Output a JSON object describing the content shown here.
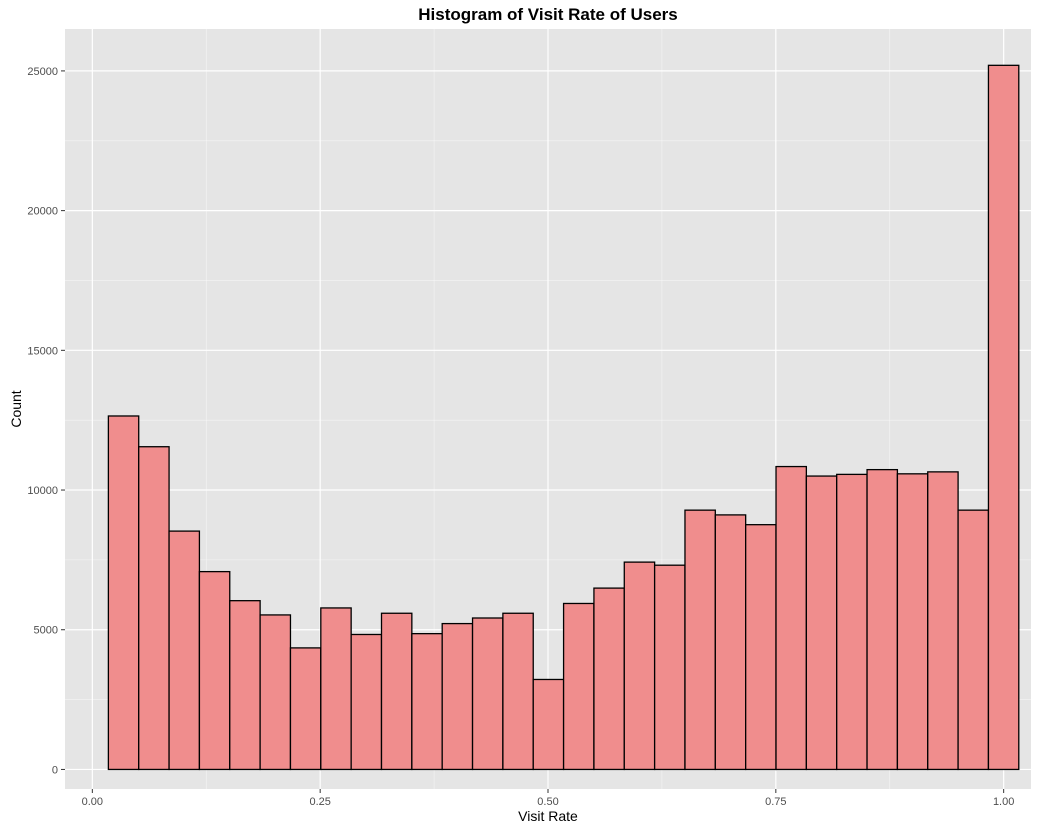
{
  "chart_data": {
    "type": "bar",
    "title": "Histogram of Visit Rate of Users",
    "xlabel": "Visit Rate",
    "ylabel": "Count",
    "xlim": [
      -0.03,
      1.03
    ],
    "ylim": [
      -700,
      26500
    ],
    "x_ticks": [
      0.0,
      0.25,
      0.5,
      0.75,
      1.0
    ],
    "x_tick_labels": [
      "0.00",
      "0.25",
      "0.50",
      "0.75",
      "1.00"
    ],
    "y_ticks": [
      0,
      5000,
      10000,
      15000,
      20000,
      25000
    ],
    "y_tick_labels": [
      "0",
      "5000",
      "10000",
      "15000",
      "20000",
      "25000"
    ],
    "grid": true,
    "bin_start": 0.0176,
    "bin_width": 0.0333,
    "values": [
      12650,
      11550,
      8530,
      7080,
      6040,
      5530,
      4350,
      5780,
      4830,
      5590,
      4860,
      5220,
      5420,
      5590,
      3220,
      5940,
      6490,
      7420,
      7310,
      9280,
      9110,
      8760,
      10840,
      10500,
      10560,
      10730,
      10580,
      10650,
      9280,
      25200
    ],
    "colors": {
      "panel": "#e5e5e5",
      "grid_major": "#ffffff",
      "bar_fill": "#f08d8d",
      "bar_stroke": "#000000",
      "tick_text": "#4d4d4d",
      "tick_mark": "#333333"
    }
  }
}
